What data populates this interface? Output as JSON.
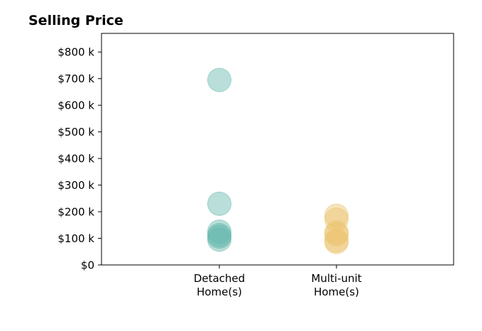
{
  "chart_data": {
    "type": "scatter",
    "title": "Selling Price",
    "xlabel": "",
    "ylabel": "",
    "categories": [
      "Detached\nHome(s)",
      "Multi-unit\nHome(s)"
    ],
    "ylim": [
      0,
      870000
    ],
    "yticks": [
      0,
      100000,
      200000,
      300000,
      400000,
      500000,
      600000,
      700000,
      800000
    ],
    "ytick_labels": [
      "$0",
      "$100 k",
      "$200 k",
      "$300 k",
      "$400 k",
      "$500 k",
      "$600 k",
      "$700 k",
      "$800 k"
    ],
    "grid": false,
    "legend": "none",
    "series": [
      {
        "category": "Detached\nHome(s)",
        "color": "#66b8ad",
        "values": [
          695000,
          230000,
          125000,
          112000,
          106000,
          95000
        ]
      },
      {
        "category": "Multi-unit\nHome(s)",
        "color": "#ebc46e",
        "values": [
          185000,
          170000,
          122000,
          115000,
          92000,
          86000
        ]
      }
    ]
  }
}
